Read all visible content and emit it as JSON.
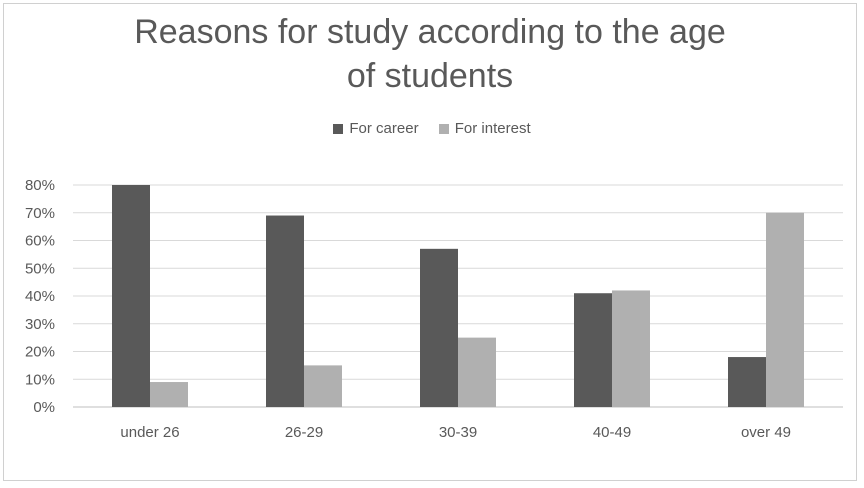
{
  "chart_data": {
    "type": "bar",
    "title_lines": [
      "Reasons for study according to the age",
      "of students"
    ],
    "categories": [
      "under 26",
      "26-29",
      "30-39",
      "40-49",
      "over 49"
    ],
    "series": [
      {
        "name": "For career",
        "values": [
          80,
          69,
          57,
          41,
          18
        ],
        "color": "#595959"
      },
      {
        "name": "For interest",
        "values": [
          9,
          15,
          25,
          42,
          70
        ],
        "color": "#b0b0b0"
      }
    ],
    "y_ticks": [
      "0%",
      "10%",
      "20%",
      "30%",
      "40%",
      "50%",
      "60%",
      "70%",
      "80%"
    ],
    "ylim": [
      0,
      80
    ],
    "grid": true,
    "legend_position": "top"
  }
}
